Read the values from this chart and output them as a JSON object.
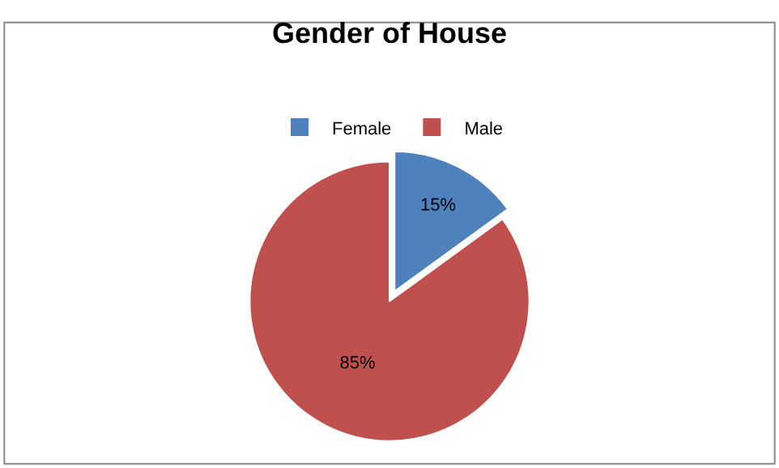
{
  "chart_data": {
    "type": "pie",
    "title": "Gender of House",
    "categories": [
      "Female",
      "Male"
    ],
    "values": [
      15,
      85
    ],
    "colors": [
      "#4f81bd",
      "#c0504d"
    ],
    "value_labels": [
      "15%",
      "85%"
    ],
    "legend": "top"
  }
}
